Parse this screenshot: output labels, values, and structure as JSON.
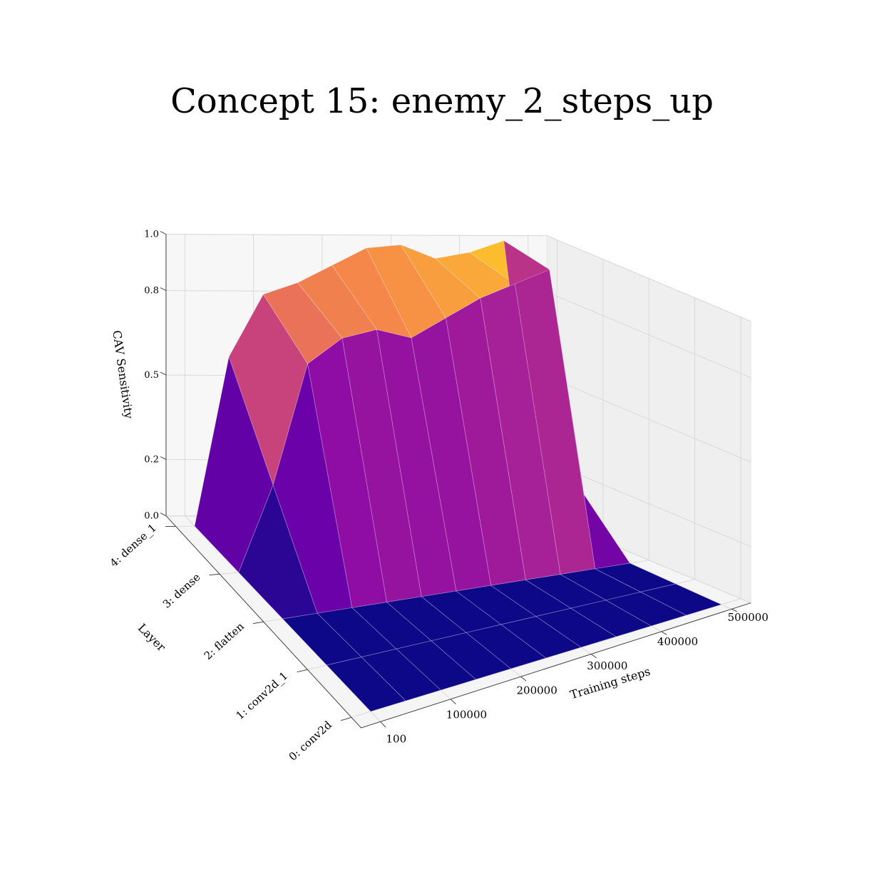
{
  "chart_data": {
    "type": "surface3d",
    "title": "Concept 15: enemy_2_steps_up",
    "xlabel": "Training steps",
    "ylabel": "Layer",
    "zlabel": "CAV Sensitivity",
    "colormap": "plasma",
    "pane_color": "#f2f2f2",
    "grid": true,
    "x_ticks": [
      "100",
      "100000",
      "200000",
      "300000",
      "400000",
      "500000"
    ],
    "y_ticks": [
      "0: conv2d",
      "1: conv2d_1",
      "2: flatten",
      "3: dense",
      "4: dense_1"
    ],
    "z_ticks": [
      "0.0",
      "0.2",
      "0.5",
      "0.8",
      "1.0"
    ],
    "zlim": [
      0,
      1
    ],
    "x": [
      100,
      50000,
      100000,
      150000,
      200000,
      250000,
      300000,
      350000,
      400000,
      450000,
      500000
    ],
    "layers": [
      0,
      1,
      2,
      3,
      4
    ],
    "z": [
      [
        0.0,
        0.0,
        0.0,
        0.0,
        0.0,
        0.0,
        0.0,
        0.0,
        0.0,
        0.0,
        0.0
      ],
      [
        0.0,
        0.0,
        0.0,
        0.0,
        0.0,
        0.0,
        0.0,
        0.0,
        0.0,
        0.0,
        0.0
      ],
      [
        0.0,
        0.0,
        0.0,
        0.0,
        0.0,
        0.0,
        0.0,
        0.0,
        0.0,
        0.0,
        0.0
      ],
      [
        0.0,
        0.3,
        0.72,
        0.8,
        0.82,
        0.78,
        0.84,
        0.9,
        0.94,
        0.98,
        0.17
      ],
      [
        0.0,
        0.6,
        0.82,
        0.86,
        0.92,
        0.98,
        0.99,
        0.94,
        0.96,
        1.0,
        0.01
      ]
    ]
  }
}
